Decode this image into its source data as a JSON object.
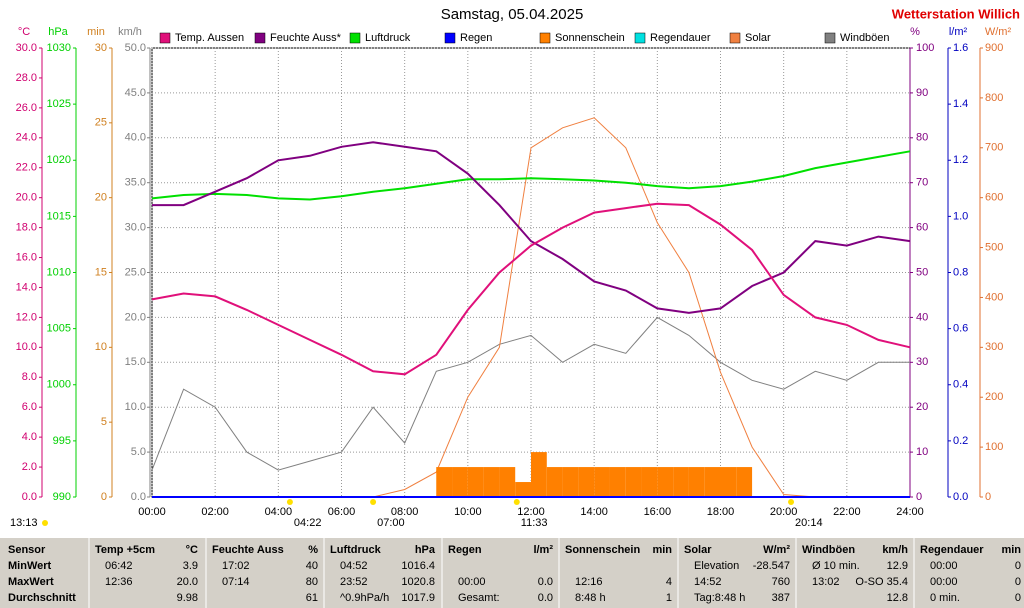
{
  "chart_data": {
    "type": "line",
    "title": "Samstag, 05.04.2025",
    "station": "Wetterstation Willich",
    "xlim": [
      0,
      24
    ],
    "xticks": [
      {
        "value": 0,
        "label": "00:00"
      },
      {
        "value": 2,
        "label": "02:00"
      },
      {
        "value": 4,
        "label": "04:00"
      },
      {
        "value": 6,
        "label": "06:00"
      },
      {
        "value": 8,
        "label": "08:00"
      },
      {
        "value": 10,
        "label": "10:00"
      },
      {
        "value": 12,
        "label": "12:00"
      },
      {
        "value": 14,
        "label": "14:00"
      },
      {
        "value": 16,
        "label": "16:00"
      },
      {
        "value": 18,
        "label": "18:00"
      },
      {
        "value": 20,
        "label": "20:00"
      },
      {
        "value": 22,
        "label": "22:00"
      },
      {
        "value": 24,
        "label": "24:00"
      }
    ],
    "grid_axis": 3,
    "axes": [
      {
        "unit": "°C",
        "lim": [
          0,
          30
        ],
        "color": "#d0006f",
        "ticks": [
          {
            "value": 0,
            "label": "0.0"
          },
          {
            "value": 2,
            "label": "2.0"
          },
          {
            "value": 4,
            "label": "4.0"
          },
          {
            "value": 6,
            "label": "6.0"
          },
          {
            "value": 8,
            "label": "8.0"
          },
          {
            "value": 10,
            "label": "10.0"
          },
          {
            "value": 12,
            "label": "12.0"
          },
          {
            "value": 14,
            "label": "14.0"
          },
          {
            "value": 16,
            "label": "16.0"
          },
          {
            "value": 18,
            "label": "18.0"
          },
          {
            "value": 20,
            "label": "20.0"
          },
          {
            "value": 22,
            "label": "22.0"
          },
          {
            "value": 24,
            "label": "24.0"
          },
          {
            "value": 26,
            "label": "26.0"
          },
          {
            "value": 28,
            "label": "28.0"
          },
          {
            "value": 30,
            "label": "30.0"
          }
        ]
      },
      {
        "unit": "hPa",
        "lim": [
          990,
          1030
        ],
        "color": "#00d000",
        "ticks": [
          990,
          995,
          1000,
          1005,
          1010,
          1015,
          1020,
          1025,
          1030
        ]
      },
      {
        "unit": "min",
        "lim": [
          0,
          30
        ],
        "color": "#d08020",
        "ticks": [
          0,
          5,
          10,
          15,
          20,
          25,
          30
        ]
      },
      {
        "unit": "km/h",
        "lim": [
          0,
          50
        ],
        "color": "#808080",
        "ticks": [
          {
            "value": 0,
            "label": "0.0"
          },
          {
            "value": 5,
            "label": "5.0"
          },
          {
            "value": 10,
            "label": "10.0"
          },
          {
            "value": 15,
            "label": "15.0"
          },
          {
            "value": 20,
            "label": "20.0"
          },
          {
            "value": 25,
            "label": "25.0"
          },
          {
            "value": 30,
            "label": "30.0"
          },
          {
            "value": 35,
            "label": "35.0"
          },
          {
            "value": 40,
            "label": "40.0"
          },
          {
            "value": 45,
            "label": "45.0"
          },
          {
            "value": 50,
            "label": "50.0"
          }
        ]
      },
      {
        "unit": "%",
        "lim": [
          0,
          100
        ],
        "color": "#800080",
        "ticks": [
          0,
          10,
          20,
          30,
          40,
          50,
          60,
          70,
          80,
          90,
          100
        ]
      },
      {
        "unit": "l/m²",
        "lim": [
          0,
          1.6
        ],
        "color": "#0000c0",
        "ticks": [
          {
            "value": 0,
            "label": "0.0"
          },
          0.2,
          0.4,
          0.6,
          0.8,
          {
            "value": 1,
            "label": "1.0"
          },
          1.2,
          1.4,
          1.6
        ]
      },
      {
        "unit": "W/m²",
        "lim": [
          0,
          900
        ],
        "color": "#e07030",
        "ticks": [
          0,
          100,
          200,
          300,
          400,
          500,
          600,
          700,
          800,
          900
        ]
      }
    ],
    "x": [
      0,
      1,
      2,
      3,
      4,
      5,
      6,
      7,
      8,
      9,
      10,
      11,
      12,
      13,
      14,
      15,
      16,
      17,
      18,
      19,
      20,
      21,
      22,
      23,
      24
    ],
    "series": [
      {
        "name": "Temp. Aussen",
        "color": "#e0107a",
        "axis": 0,
        "values": [
          13.2,
          13.6,
          13.4,
          12.5,
          11.5,
          10.5,
          9.5,
          8.4,
          8.2,
          9.5,
          12.5,
          15.0,
          16.8,
          18.0,
          19.0,
          19.3,
          19.6,
          19.5,
          18.2,
          16.5,
          13.5,
          12.0,
          11.5,
          10.5,
          10.0
        ]
      },
      {
        "name": "Feuchte Auss*",
        "color": "#800080",
        "axis": 4,
        "values": [
          65,
          65,
          68,
          71,
          75,
          76,
          78,
          79,
          78,
          77,
          72,
          65,
          57,
          53,
          48,
          46,
          42,
          41,
          42,
          47,
          50,
          57,
          56,
          58,
          57
        ]
      },
      {
        "name": "Luftdruck",
        "color": "#00e000",
        "axis": 1,
        "values": [
          1016.6,
          1016.9,
          1017.0,
          1016.9,
          1016.6,
          1016.5,
          1016.8,
          1017.2,
          1017.5,
          1017.9,
          1018.3,
          1018.3,
          1018.4,
          1018.3,
          1018.2,
          1018.0,
          1017.7,
          1017.5,
          1017.7,
          1018.1,
          1018.6,
          1019.3,
          1019.8,
          1020.3,
          1020.8
        ]
      },
      {
        "name": "Regen",
        "color": "#0000ff",
        "axis": 5,
        "x": [
          0,
          24
        ],
        "values": [
          0,
          0
        ]
      },
      {
        "name": "Sonnenschein",
        "color": "#ff8000",
        "axis": 2,
        "type": "bar",
        "x": [
          9,
          9.5,
          10,
          10.5,
          11,
          11.5,
          12,
          12.5,
          13,
          13.5,
          14,
          14.5,
          15,
          15.5,
          16,
          16.5,
          17,
          17.5,
          18,
          18.5
        ],
        "values": [
          2,
          2,
          2,
          2,
          2,
          1,
          3,
          2,
          2,
          2,
          2,
          2,
          2,
          2,
          2,
          2,
          2,
          2,
          2,
          2
        ]
      },
      {
        "name": "Regendauer",
        "color": "#00e0e0",
        "axis": 2,
        "x": [
          0,
          24
        ],
        "values": [
          0,
          0
        ]
      },
      {
        "name": "Solar",
        "color": "#f08040",
        "axis": 6,
        "values": [
          0,
          0,
          0,
          0,
          0,
          0,
          0,
          0,
          15,
          50,
          200,
          300,
          700,
          740,
          760,
          700,
          550,
          450,
          250,
          100,
          5,
          0,
          0,
          0,
          0
        ]
      },
      {
        "name": "Windböen",
        "color": "#808080",
        "axis": 3,
        "values": [
          3,
          12,
          10,
          5,
          3,
          4,
          5,
          10,
          6,
          14,
          15,
          17,
          18,
          15,
          17,
          16,
          20,
          18,
          15,
          13,
          12,
          14,
          13,
          15,
          15
        ]
      }
    ],
    "annotations": [
      {
        "label": "13:13"
      },
      {
        "label": "04:22",
        "x": 4.3667
      },
      {
        "label": "07:00",
        "x": 7
      },
      {
        "label": "11:33",
        "x": 11.55
      },
      {
        "label": "20:14",
        "x": 20.2333
      }
    ]
  },
  "table": {
    "columns": [
      {
        "header": "Sensor",
        "rows": [
          "MinWert",
          "MaxWert",
          "Durchschnitt"
        ]
      },
      {
        "header": "Temp +5cm",
        "unit": "°C",
        "rows": [
          [
            "06:42",
            "3.9"
          ],
          [
            "12:36",
            "20.0"
          ],
          [
            null,
            "9.98"
          ]
        ]
      },
      {
        "header": "Feuchte Auss",
        "unit": "%",
        "rows": [
          [
            "17:02",
            "40"
          ],
          [
            "07:14",
            "80"
          ],
          [
            null,
            "61"
          ]
        ]
      },
      {
        "header": "Luftdruck",
        "unit": "hPa",
        "rows": [
          [
            "04:52",
            "1016.4"
          ],
          [
            "23:52",
            "1020.8"
          ],
          [
            "^0.9hPa/h",
            "1017.9"
          ]
        ]
      },
      {
        "header": "Regen",
        "unit": "l/m²",
        "rows": [
          [
            null,
            null
          ],
          [
            "00:00",
            "0.0"
          ],
          [
            "Gesamt:",
            "0.0"
          ]
        ]
      },
      {
        "header": "Sonnenschein",
        "unit": "min",
        "rows": [
          [
            null,
            null
          ],
          [
            "12:16",
            "4"
          ],
          [
            "8:48 h",
            "1"
          ]
        ]
      },
      {
        "header": "Solar",
        "unit": "W/m²",
        "rows": [
          [
            "Elevation",
            "-28.547"
          ],
          [
            "14:52",
            "760"
          ],
          [
            "Tag:8:48 h",
            "387"
          ]
        ]
      },
      {
        "header": "Windböen",
        "unit": "km/h",
        "rows": [
          [
            "Ø 10 min.",
            "12.9"
          ],
          [
            "13:02",
            "O-SO 35.4"
          ],
          [
            null,
            "12.8"
          ]
        ]
      },
      {
        "header": "Regendauer",
        "unit": "min",
        "rows": [
          [
            "00:00",
            "0"
          ],
          [
            "00:00",
            "0"
          ],
          [
            "0 min.",
            "0"
          ]
        ]
      }
    ]
  }
}
